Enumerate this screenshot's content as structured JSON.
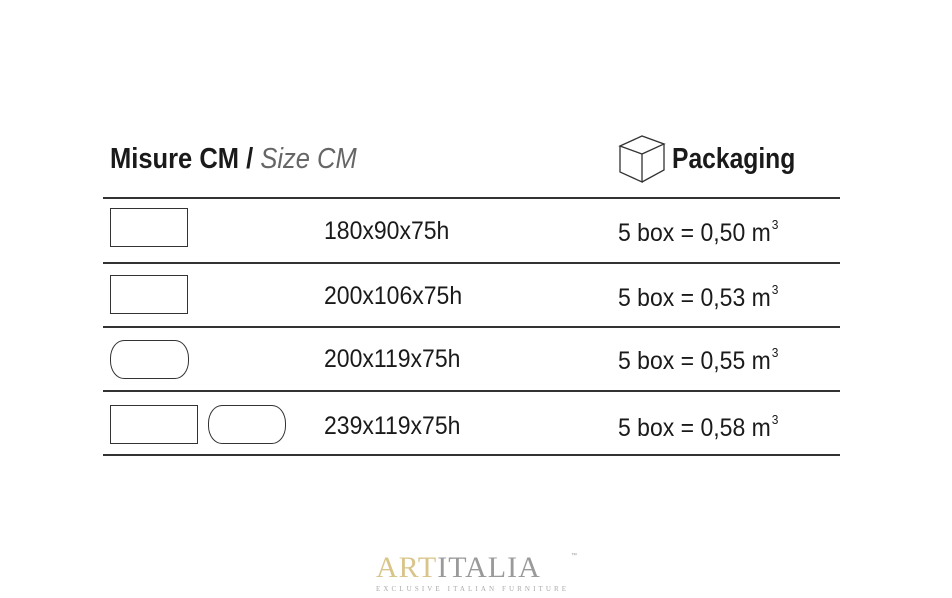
{
  "header": {
    "size_label_it": "Misure CM /",
    "size_label_en": "Size CM",
    "packaging_label": "Packaging",
    "packaging_icon": "box-icon"
  },
  "rows": [
    {
      "shapes": [
        "rectangle"
      ],
      "size": "180x90x75h",
      "packaging": "5 box = 0,50 m",
      "unit_exp": "3"
    },
    {
      "shapes": [
        "rectangle"
      ],
      "size": "200x106x75h",
      "packaging": "5 box = 0,53 m",
      "unit_exp": "3"
    },
    {
      "shapes": [
        "rounded-oval"
      ],
      "size": "200x119x75h",
      "packaging": "5 box = 0,55 m",
      "unit_exp": "3"
    },
    {
      "shapes": [
        "rectangle",
        "rounded-oval"
      ],
      "size": "239x119x75h",
      "packaging": "5 box = 0,58 m",
      "unit_exp": "3"
    }
  ],
  "logo": {
    "part1": "ART",
    "part2": "ITALIA",
    "tm": "™",
    "tagline": "EXCLUSIVE ITALIAN FURNITURE",
    "colors": {
      "gold": "#d9c48a",
      "gray": "#9a9a9a"
    }
  }
}
